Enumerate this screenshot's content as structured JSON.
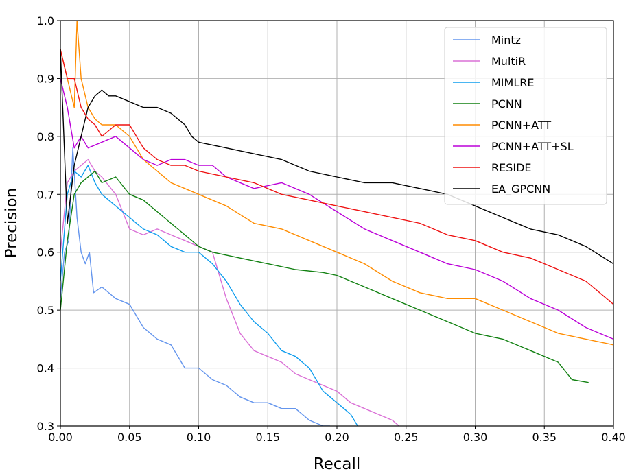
{
  "chart_data": {
    "type": "line",
    "title": "",
    "xlabel": "Recall",
    "ylabel": "Precision",
    "xlim": [
      0.0,
      0.4
    ],
    "ylim": [
      0.3,
      1.0
    ],
    "xticks": [
      "0.00",
      "0.05",
      "0.10",
      "0.15",
      "0.20",
      "0.25",
      "0.30",
      "0.35",
      "0.40"
    ],
    "yticks": [
      "0.3",
      "0.4",
      "0.5",
      "0.6",
      "0.7",
      "0.8",
      "0.9",
      "1.0"
    ],
    "grid": true,
    "legend_position": "top-right",
    "series": [
      {
        "name": "Mintz",
        "color": "#6495ed",
        "x": [
          0.0,
          0.003,
          0.006,
          0.009,
          0.012,
          0.015,
          0.018,
          0.021,
          0.024,
          0.03,
          0.04,
          0.05,
          0.06,
          0.07,
          0.08,
          0.09,
          0.1,
          0.11,
          0.12,
          0.13,
          0.14,
          0.15,
          0.16,
          0.17,
          0.18,
          0.19,
          0.195
        ],
        "y": [
          0.52,
          0.6,
          0.62,
          0.78,
          0.66,
          0.6,
          0.58,
          0.6,
          0.53,
          0.54,
          0.52,
          0.51,
          0.47,
          0.45,
          0.44,
          0.4,
          0.4,
          0.38,
          0.37,
          0.35,
          0.34,
          0.34,
          0.33,
          0.33,
          0.31,
          0.3,
          0.3
        ]
      },
      {
        "name": "MultiR",
        "color": "#da70d6",
        "x": [
          0.0,
          0.005,
          0.01,
          0.015,
          0.02,
          0.025,
          0.03,
          0.04,
          0.05,
          0.06,
          0.07,
          0.08,
          0.09,
          0.1,
          0.11,
          0.12,
          0.13,
          0.14,
          0.15,
          0.16,
          0.17,
          0.18,
          0.19,
          0.2,
          0.21,
          0.22,
          0.23,
          0.24,
          0.245
        ],
        "y": [
          0.6,
          0.72,
          0.74,
          0.75,
          0.76,
          0.74,
          0.73,
          0.7,
          0.64,
          0.63,
          0.64,
          0.63,
          0.62,
          0.61,
          0.6,
          0.52,
          0.46,
          0.43,
          0.42,
          0.41,
          0.39,
          0.38,
          0.37,
          0.36,
          0.34,
          0.33,
          0.32,
          0.31,
          0.3
        ]
      },
      {
        "name": "MIMLRE",
        "color": "#0f9dee",
        "x": [
          0.0,
          0.005,
          0.01,
          0.015,
          0.02,
          0.025,
          0.03,
          0.04,
          0.05,
          0.06,
          0.07,
          0.08,
          0.09,
          0.1,
          0.11,
          0.12,
          0.13,
          0.14,
          0.15,
          0.16,
          0.17,
          0.18,
          0.19,
          0.2,
          0.21,
          0.215
        ],
        "y": [
          0.55,
          0.7,
          0.74,
          0.73,
          0.75,
          0.72,
          0.7,
          0.68,
          0.66,
          0.64,
          0.63,
          0.61,
          0.6,
          0.6,
          0.58,
          0.55,
          0.51,
          0.48,
          0.46,
          0.43,
          0.42,
          0.4,
          0.36,
          0.34,
          0.32,
          0.3
        ]
      },
      {
        "name": "PCNN",
        "color": "#118011",
        "x": [
          0.0,
          0.005,
          0.01,
          0.015,
          0.02,
          0.025,
          0.03,
          0.04,
          0.05,
          0.06,
          0.07,
          0.08,
          0.09,
          0.1,
          0.11,
          0.12,
          0.13,
          0.15,
          0.17,
          0.19,
          0.2,
          0.22,
          0.24,
          0.26,
          0.28,
          0.3,
          0.32,
          0.34,
          0.36,
          0.37,
          0.382
        ],
        "y": [
          0.5,
          0.62,
          0.7,
          0.72,
          0.73,
          0.74,
          0.72,
          0.73,
          0.7,
          0.69,
          0.67,
          0.65,
          0.63,
          0.61,
          0.6,
          0.595,
          0.59,
          0.58,
          0.57,
          0.565,
          0.56,
          0.54,
          0.52,
          0.5,
          0.48,
          0.46,
          0.45,
          0.43,
          0.41,
          0.38,
          0.375
        ]
      },
      {
        "name": "PCNN+ATT",
        "color": "#ff8c00",
        "x": [
          0.0,
          0.005,
          0.01,
          0.012,
          0.015,
          0.02,
          0.025,
          0.03,
          0.04,
          0.05,
          0.06,
          0.07,
          0.08,
          0.09,
          0.1,
          0.12,
          0.14,
          0.16,
          0.18,
          0.2,
          0.22,
          0.24,
          0.26,
          0.28,
          0.3,
          0.32,
          0.34,
          0.36,
          0.38,
          0.4
        ],
        "y": [
          0.95,
          0.9,
          0.85,
          1.0,
          0.9,
          0.85,
          0.83,
          0.82,
          0.82,
          0.8,
          0.76,
          0.74,
          0.72,
          0.71,
          0.7,
          0.68,
          0.65,
          0.64,
          0.62,
          0.6,
          0.58,
          0.55,
          0.53,
          0.52,
          0.52,
          0.5,
          0.48,
          0.46,
          0.45,
          0.44
        ]
      },
      {
        "name": "PCNN+ATT+SL",
        "color": "#bb00d8",
        "x": [
          0.0,
          0.005,
          0.01,
          0.015,
          0.02,
          0.03,
          0.04,
          0.05,
          0.06,
          0.07,
          0.08,
          0.09,
          0.1,
          0.11,
          0.12,
          0.14,
          0.16,
          0.18,
          0.2,
          0.22,
          0.24,
          0.26,
          0.28,
          0.3,
          0.32,
          0.34,
          0.36,
          0.38,
          0.4
        ],
        "y": [
          0.9,
          0.85,
          0.78,
          0.8,
          0.78,
          0.79,
          0.8,
          0.78,
          0.76,
          0.75,
          0.76,
          0.76,
          0.75,
          0.75,
          0.73,
          0.71,
          0.72,
          0.7,
          0.67,
          0.64,
          0.62,
          0.6,
          0.58,
          0.57,
          0.55,
          0.52,
          0.5,
          0.47,
          0.45
        ]
      },
      {
        "name": "RESIDE",
        "color": "#ee1111",
        "x": [
          0.0,
          0.005,
          0.01,
          0.015,
          0.02,
          0.025,
          0.03,
          0.04,
          0.05,
          0.06,
          0.07,
          0.08,
          0.09,
          0.1,
          0.12,
          0.14,
          0.16,
          0.18,
          0.2,
          0.22,
          0.24,
          0.26,
          0.28,
          0.3,
          0.32,
          0.34,
          0.36,
          0.38,
          0.4
        ],
        "y": [
          0.95,
          0.9,
          0.9,
          0.85,
          0.83,
          0.82,
          0.8,
          0.82,
          0.82,
          0.78,
          0.76,
          0.75,
          0.75,
          0.74,
          0.73,
          0.72,
          0.7,
          0.69,
          0.68,
          0.67,
          0.66,
          0.65,
          0.63,
          0.62,
          0.6,
          0.59,
          0.57,
          0.55,
          0.51
        ]
      },
      {
        "name": "EA_GPCNN",
        "color": "#000000",
        "x": [
          0.0,
          0.005,
          0.01,
          0.015,
          0.02,
          0.025,
          0.03,
          0.035,
          0.04,
          0.05,
          0.06,
          0.07,
          0.08,
          0.09,
          0.095,
          0.1,
          0.12,
          0.14,
          0.16,
          0.18,
          0.2,
          0.22,
          0.24,
          0.26,
          0.28,
          0.3,
          0.32,
          0.34,
          0.36,
          0.38,
          0.4
        ],
        "y": [
          0.95,
          0.65,
          0.75,
          0.8,
          0.85,
          0.87,
          0.88,
          0.87,
          0.87,
          0.86,
          0.85,
          0.85,
          0.84,
          0.82,
          0.8,
          0.79,
          0.78,
          0.77,
          0.76,
          0.74,
          0.73,
          0.72,
          0.72,
          0.71,
          0.7,
          0.68,
          0.66,
          0.64,
          0.63,
          0.61,
          0.58
        ]
      }
    ]
  }
}
